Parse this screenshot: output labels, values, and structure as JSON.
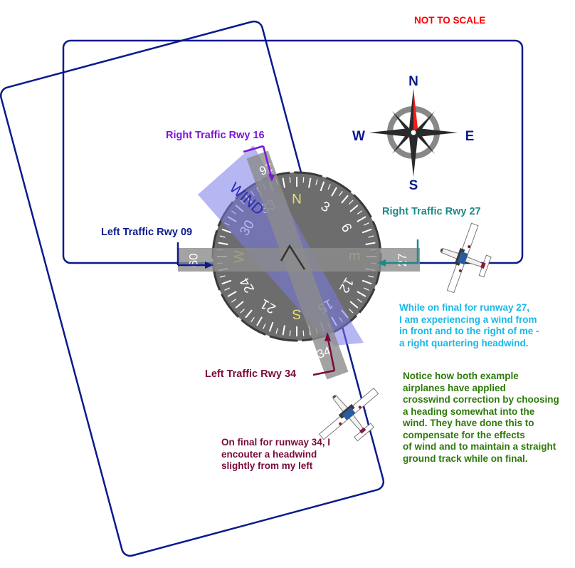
{
  "header": {
    "not_to_scale": "NOT TO SCALE"
  },
  "compass_rose": {
    "north": "N",
    "south": "S",
    "east": "E",
    "west": "W"
  },
  "heading_indicator": {
    "cardinals": [
      "N",
      "E",
      "S",
      "W"
    ],
    "numerals": [
      "3",
      "6",
      "12",
      "15",
      "21",
      "24",
      "30",
      "33"
    ],
    "wind_label": "WIND"
  },
  "runways": {
    "numbers": [
      "16",
      "34",
      "09",
      "27"
    ],
    "labels": {
      "right_traffic_16": "Right Traffic Rwy 16",
      "left_traffic_09": "Left Traffic Rwy 09",
      "right_traffic_27": "Right Traffic Rwy 27",
      "left_traffic_34": "Left Traffic Rwy 34"
    }
  },
  "notes": {
    "rwy27_note": [
      "While on final for runway 27,",
      "I am experiencing a wind from",
      "in front and to the right of me -",
      "a right quartering headwind."
    ],
    "rwy34_note": [
      "On final for runway 34, I",
      "encouter a headwind",
      "slightly from my left"
    ],
    "correction_note": [
      "Notice how both example",
      "airplanes have applied",
      "crosswind correction by choosing",
      "a heading somewhat into the",
      "wind.  They have done this to",
      "compensate for the effects",
      "of wind and to maintain a straight",
      "ground track while on final."
    ]
  },
  "colors": {
    "pattern": "#0a1a8c",
    "not_to_scale": "#ff0000",
    "rwy16": "#7b16d6",
    "rwy09": "#0a1a8c",
    "rwy27": "#1c8a8a",
    "rwy34": "#7a0a3a",
    "note27": "#1ab8e8",
    "note34": "#7a0a3a",
    "note_green": "#2e7a0a",
    "wind": "#8080ee"
  },
  "icons": [
    "compass-rose-icon",
    "heading-indicator-icon",
    "airplane-icon",
    "wind-arrow-icon"
  ]
}
